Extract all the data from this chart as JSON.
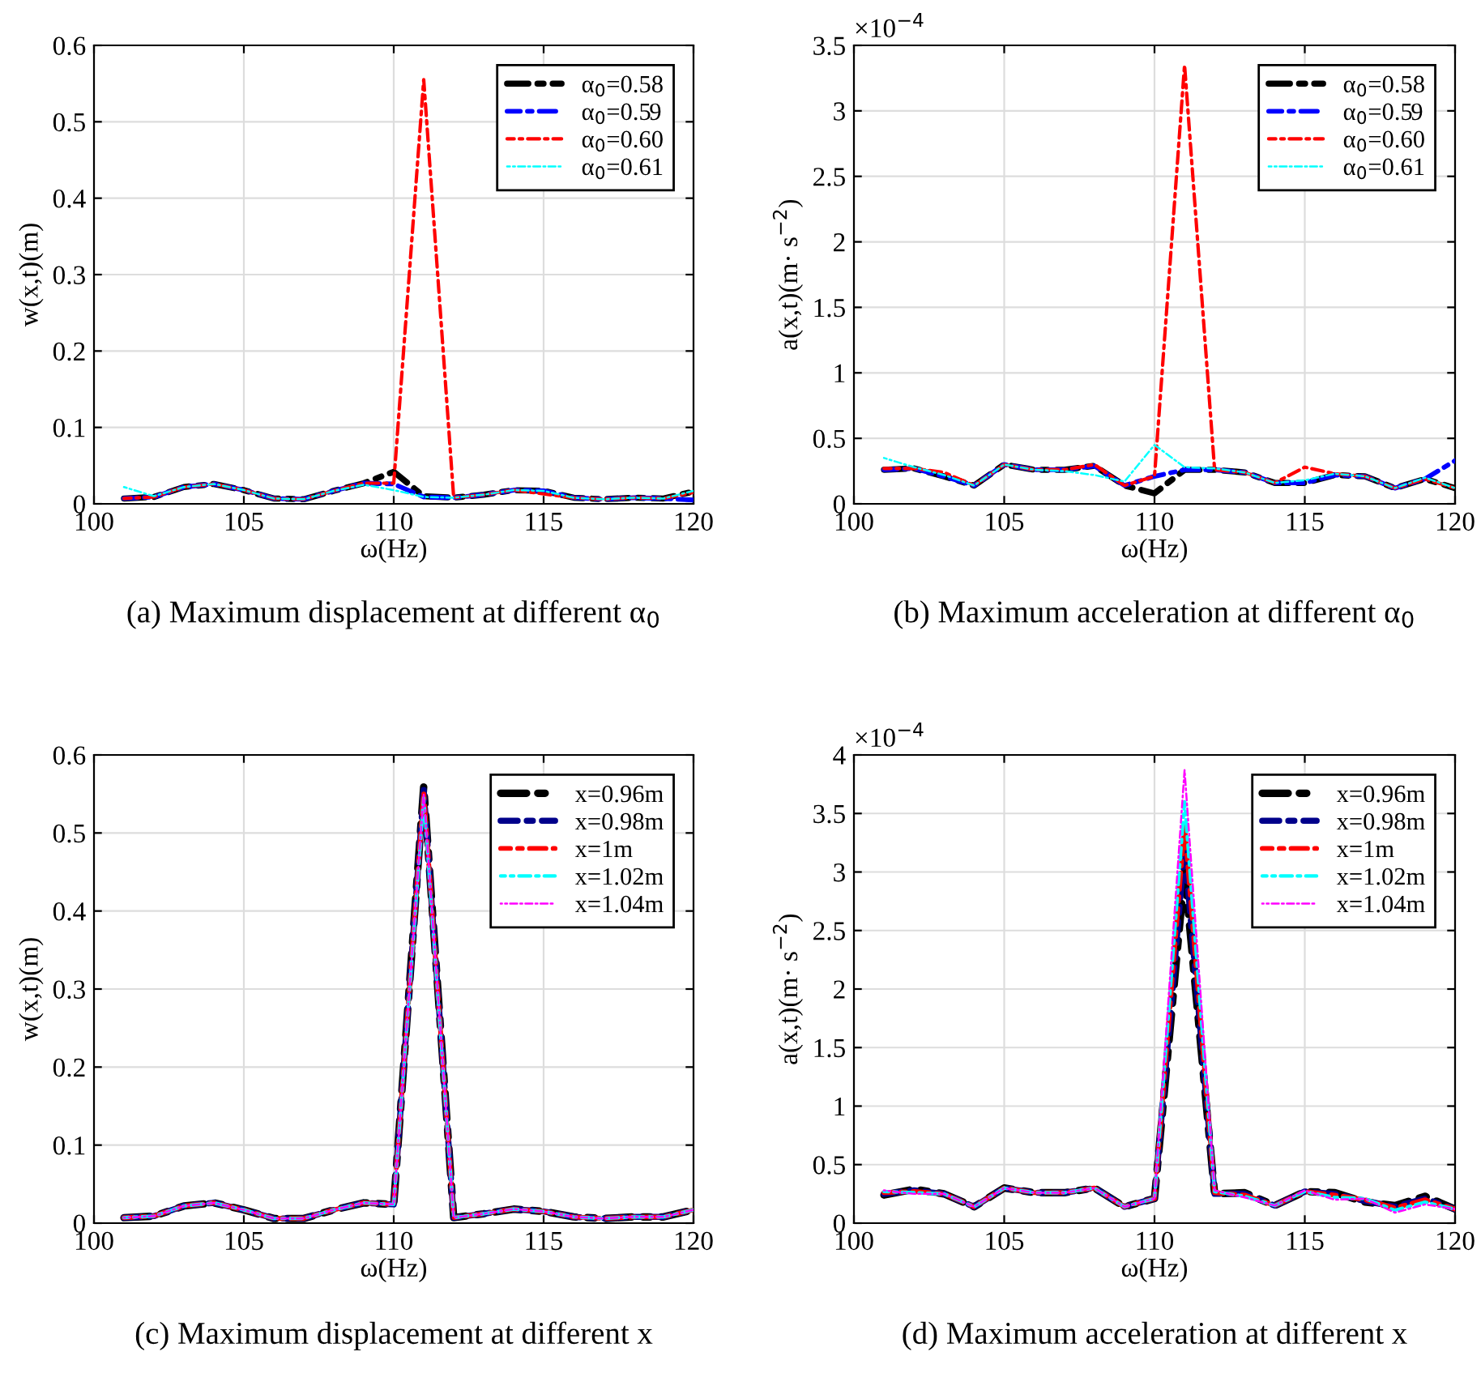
{
  "chart_data": [
    {
      "type": "line",
      "title": "(a) Maximum displacement at different α$_{0}$",
      "xlabel": "ω(Hz)",
      "ylabel": "w(x,t)(m)",
      "x": [
        101,
        102,
        103,
        104,
        105,
        106,
        107,
        108,
        109,
        110,
        111,
        112,
        113,
        114,
        115,
        116,
        117,
        118,
        119,
        120
      ],
      "xlim": [
        100,
        120
      ],
      "xticks": [
        100,
        105,
        110,
        115,
        120
      ],
      "ylim": [
        0,
        0.6
      ],
      "yticks": [
        0,
        0.1,
        0.2,
        0.3,
        0.4,
        0.5,
        0.6
      ],
      "grid": true,
      "legend": "top right",
      "line_style": "dashed",
      "series": [
        {
          "name": "α$_{0}$=0.58",
          "color": "#000000",
          "values": [
            0.007,
            0.009,
            0.022,
            0.026,
            0.018,
            0.007,
            0.006,
            0.017,
            0.027,
            0.042,
            0.01,
            0.008,
            0.012,
            0.018,
            0.017,
            0.008,
            0.006,
            0.008,
            0.007,
            0.016
          ]
        },
        {
          "name": "α$_{0}$=0.59",
          "color": "#0000ff",
          "values": [
            0.007,
            0.009,
            0.022,
            0.026,
            0.018,
            0.007,
            0.006,
            0.017,
            0.027,
            0.026,
            0.009,
            0.008,
            0.012,
            0.018,
            0.017,
            0.008,
            0.006,
            0.008,
            0.007,
            0.005
          ]
        },
        {
          "name": "α$_{0}$=0.60",
          "color": "#ff0000",
          "values": [
            0.007,
            0.009,
            0.022,
            0.026,
            0.018,
            0.007,
            0.006,
            0.017,
            0.027,
            0.027,
            0.555,
            0.008,
            0.012,
            0.018,
            0.013,
            0.008,
            0.006,
            0.008,
            0.007,
            0.015
          ]
        },
        {
          "name": "α$_{0}$=0.61",
          "color": "#00ffff",
          "values": [
            0.022,
            0.01,
            0.022,
            0.026,
            0.018,
            0.007,
            0.006,
            0.017,
            0.025,
            0.018,
            0.009,
            0.008,
            0.012,
            0.018,
            0.017,
            0.008,
            0.006,
            0.008,
            0.007,
            0.017
          ]
        }
      ]
    },
    {
      "type": "line",
      "title": "(b) Maximum acceleration at different α$_{0}$",
      "xlabel": "ω(Hz)",
      "ylabel": "a(x,t)(m· s$^{−2}$)",
      "annotations": [
        "×10$^{−4}$"
      ],
      "x": [
        101,
        102,
        103,
        104,
        105,
        106,
        107,
        108,
        109,
        110,
        111,
        112,
        113,
        114,
        115,
        116,
        117,
        118,
        119,
        120
      ],
      "xlim": [
        100,
        120
      ],
      "xticks": [
        100,
        105,
        110,
        115,
        120
      ],
      "ylim": [
        0,
        3.5
      ],
      "yticks": [
        0,
        0.5,
        1,
        1.5,
        2,
        2.5,
        3,
        3.5
      ],
      "grid": true,
      "legend": "top right",
      "line_style": "dashed",
      "series": [
        {
          "name": "α$_{0}$=0.58",
          "color": "#000000",
          "values": [
            0.26,
            0.27,
            0.21,
            0.14,
            0.3,
            0.26,
            0.26,
            0.29,
            0.14,
            0.08,
            0.26,
            0.26,
            0.24,
            0.16,
            0.16,
            0.22,
            0.21,
            0.12,
            0.19,
            0.12
          ]
        },
        {
          "name": "α$_{0}$=0.59",
          "color": "#0000ff",
          "values": [
            0.26,
            0.27,
            0.21,
            0.14,
            0.3,
            0.26,
            0.26,
            0.29,
            0.14,
            0.21,
            0.26,
            0.26,
            0.24,
            0.16,
            0.16,
            0.22,
            0.21,
            0.12,
            0.19,
            0.33
          ]
        },
        {
          "name": "α$_{0}$=0.60",
          "color": "#ff0000",
          "values": [
            0.27,
            0.27,
            0.24,
            0.14,
            0.3,
            0.26,
            0.26,
            0.3,
            0.14,
            0.21,
            3.35,
            0.26,
            0.24,
            0.16,
            0.28,
            0.23,
            0.21,
            0.12,
            0.19,
            0.12
          ]
        },
        {
          "name": "α$_{0}$=0.61",
          "color": "#00ffff",
          "values": [
            0.35,
            0.28,
            0.22,
            0.14,
            0.3,
            0.26,
            0.25,
            0.22,
            0.17,
            0.45,
            0.28,
            0.27,
            0.24,
            0.16,
            0.18,
            0.23,
            0.21,
            0.12,
            0.2,
            0.12
          ]
        }
      ]
    },
    {
      "type": "line",
      "title": "(c) Maximum displacement at different x",
      "xlabel": "ω(Hz)",
      "ylabel": "w(x,t)(m)",
      "x": [
        101,
        102,
        103,
        104,
        105,
        106,
        107,
        108,
        109,
        110,
        111,
        112,
        113,
        114,
        115,
        116,
        117,
        118,
        119,
        120
      ],
      "xlim": [
        100,
        120
      ],
      "xticks": [
        100,
        105,
        110,
        115,
        120
      ],
      "ylim": [
        0,
        0.6
      ],
      "yticks": [
        0,
        0.1,
        0.2,
        0.3,
        0.4,
        0.5,
        0.6
      ],
      "grid": true,
      "legend": "top right",
      "line_style": "dashed",
      "series": [
        {
          "name": "x=0.96m",
          "color": "#000000",
          "values": [
            0.007,
            0.009,
            0.022,
            0.026,
            0.017,
            0.006,
            0.006,
            0.017,
            0.026,
            0.024,
            0.56,
            0.007,
            0.012,
            0.018,
            0.015,
            0.008,
            0.006,
            0.008,
            0.008,
            0.017
          ]
        },
        {
          "name": "x=0.98m",
          "color": "#00008b",
          "values": [
            0.007,
            0.009,
            0.022,
            0.026,
            0.017,
            0.006,
            0.006,
            0.017,
            0.026,
            0.024,
            0.555,
            0.007,
            0.012,
            0.018,
            0.015,
            0.008,
            0.006,
            0.008,
            0.008,
            0.017
          ]
        },
        {
          "name": "x=1m",
          "color": "#ff0000",
          "values": [
            0.007,
            0.009,
            0.022,
            0.026,
            0.017,
            0.006,
            0.006,
            0.017,
            0.026,
            0.024,
            0.552,
            0.007,
            0.012,
            0.018,
            0.015,
            0.008,
            0.006,
            0.008,
            0.008,
            0.017
          ]
        },
        {
          "name": "x=1.02m",
          "color": "#00ffff",
          "values": [
            0.007,
            0.009,
            0.022,
            0.026,
            0.017,
            0.006,
            0.006,
            0.017,
            0.026,
            0.024,
            0.545,
            0.007,
            0.012,
            0.018,
            0.015,
            0.008,
            0.006,
            0.008,
            0.008,
            0.017
          ]
        },
        {
          "name": "x=1.04m",
          "color": "#ff00ff",
          "values": [
            0.007,
            0.009,
            0.022,
            0.026,
            0.017,
            0.006,
            0.006,
            0.017,
            0.026,
            0.024,
            0.55,
            0.007,
            0.012,
            0.018,
            0.015,
            0.008,
            0.006,
            0.008,
            0.008,
            0.017
          ]
        }
      ]
    },
    {
      "type": "line",
      "title": "(d) Maximum acceleration at different x",
      "xlabel": "ω(Hz)",
      "ylabel": "a(x,t)(m· s$^{−2}$)",
      "annotations": [
        "×10$^{−4}$"
      ],
      "x": [
        101,
        102,
        103,
        104,
        105,
        106,
        107,
        108,
        109,
        110,
        111,
        112,
        113,
        114,
        115,
        116,
        117,
        118,
        119,
        120
      ],
      "xlim": [
        100,
        120
      ],
      "xticks": [
        100,
        105,
        110,
        115,
        120
      ],
      "ylim": [
        0,
        4
      ],
      "yticks": [
        0,
        0.5,
        1,
        1.5,
        2,
        2.5,
        3,
        3.5,
        4
      ],
      "grid": true,
      "legend": "top right",
      "line_style": "dashed",
      "series": [
        {
          "name": "x=0.96m",
          "color": "#000000",
          "values": [
            0.24,
            0.29,
            0.25,
            0.14,
            0.3,
            0.26,
            0.26,
            0.3,
            0.14,
            0.21,
            3.0,
            0.25,
            0.26,
            0.15,
            0.27,
            0.26,
            0.18,
            0.15,
            0.23,
            0.12
          ]
        },
        {
          "name": "x=0.98m",
          "color": "#00008b",
          "values": [
            0.25,
            0.28,
            0.25,
            0.14,
            0.3,
            0.26,
            0.26,
            0.3,
            0.14,
            0.21,
            3.2,
            0.25,
            0.25,
            0.15,
            0.27,
            0.25,
            0.19,
            0.14,
            0.21,
            0.12
          ]
        },
        {
          "name": "x=1m",
          "color": "#ff0000",
          "values": [
            0.26,
            0.27,
            0.25,
            0.14,
            0.3,
            0.26,
            0.26,
            0.3,
            0.14,
            0.21,
            3.4,
            0.26,
            0.24,
            0.15,
            0.27,
            0.24,
            0.2,
            0.13,
            0.2,
            0.12
          ]
        },
        {
          "name": "x=1.02m",
          "color": "#00ffff",
          "values": [
            0.27,
            0.26,
            0.25,
            0.14,
            0.3,
            0.26,
            0.26,
            0.3,
            0.14,
            0.21,
            3.6,
            0.27,
            0.23,
            0.15,
            0.27,
            0.22,
            0.21,
            0.11,
            0.18,
            0.12
          ]
        },
        {
          "name": "x=1.04m",
          "color": "#ff00ff",
          "values": [
            0.28,
            0.25,
            0.25,
            0.14,
            0.3,
            0.26,
            0.26,
            0.3,
            0.14,
            0.21,
            3.87,
            0.28,
            0.22,
            0.15,
            0.28,
            0.2,
            0.21,
            0.09,
            0.16,
            0.12
          ]
        }
      ]
    }
  ]
}
